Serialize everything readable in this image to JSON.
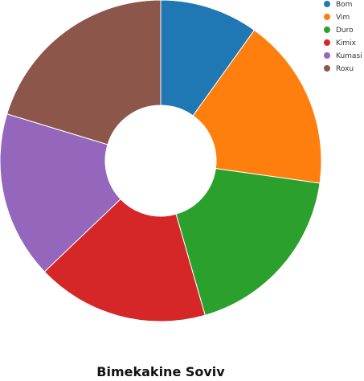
{
  "chart_data": {
    "type": "pie",
    "title": "Bimekakine Soviv",
    "donut": true,
    "categories": [
      "Bom",
      "Vim",
      "Duro",
      "Kimix",
      "Kumasi",
      "Roxu"
    ],
    "values": [
      10,
      17.5,
      18.5,
      17.5,
      17,
      20.5
    ],
    "colors": [
      "#1f77b4",
      "#ff7f0e",
      "#2ca02c",
      "#d62728",
      "#9467bd",
      "#8c564b"
    ],
    "legend_position": "top-right"
  }
}
